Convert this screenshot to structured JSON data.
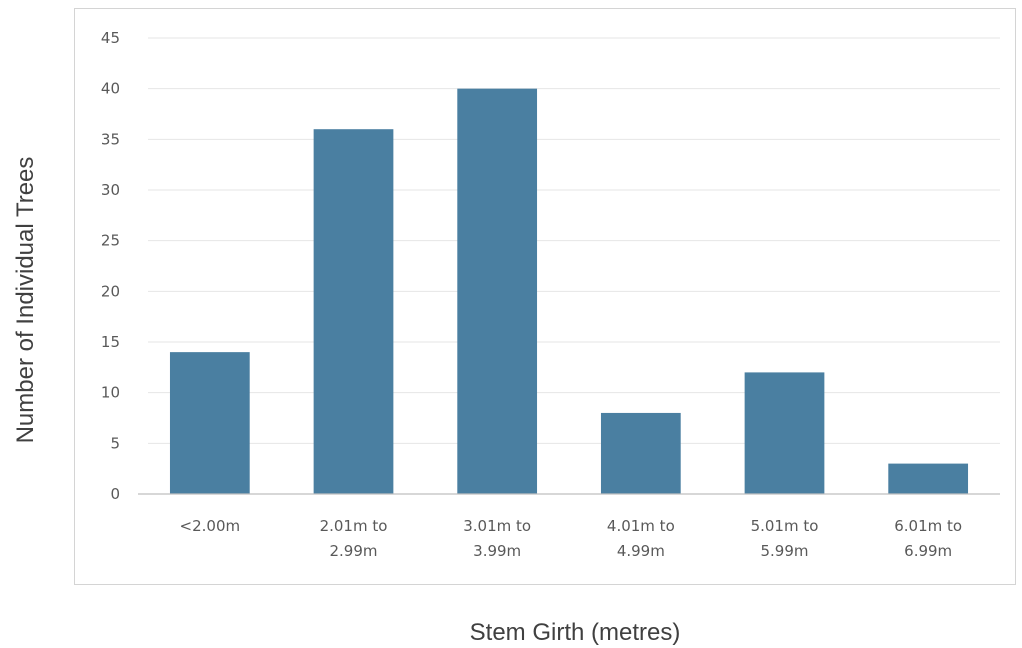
{
  "chart_data": {
    "type": "bar",
    "title": "",
    "xlabel": "Stem Girth (metres)",
    "ylabel": "Number of Individual Trees",
    "categories": [
      [
        "<2.00m"
      ],
      [
        "2.01m to",
        "2.99m"
      ],
      [
        "3.01m to",
        "3.99m"
      ],
      [
        "4.01m to",
        "4.99m"
      ],
      [
        "5.01m to",
        "5.99m"
      ],
      [
        "6.01m to",
        "6.99m"
      ]
    ],
    "values": [
      14,
      36,
      40,
      8,
      12,
      3
    ],
    "ylim": [
      0,
      45
    ],
    "yticks": [
      0,
      5,
      10,
      15,
      20,
      25,
      30,
      35,
      40,
      45
    ],
    "grid": true,
    "legend": "none",
    "bar_color": "#4a7fa1",
    "grid_color": "#e6e6e6",
    "axis_color": "#bfbfbf"
  }
}
